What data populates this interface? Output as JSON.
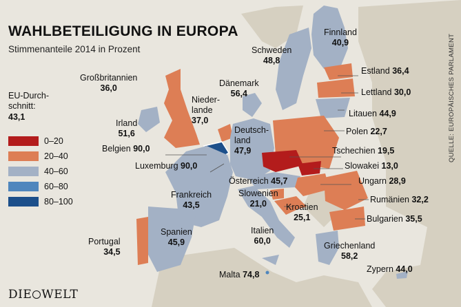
{
  "title": "WAHLBETEILIGUNG IN EUROPA",
  "subtitle": "Stimmenanteile 2014 in Prozent",
  "legend": {
    "average_label": "EU-Durch-schnitt:",
    "average_line1": "EU-Durch-",
    "average_line2": "schnitt:",
    "average_value": "43,1",
    "classes": [
      {
        "range": "0–20",
        "color": "#b31c1c"
      },
      {
        "range": "20–40",
        "color": "#dd7e55"
      },
      {
        "range": "40–60",
        "color": "#a3b1c5"
      },
      {
        "range": "60–80",
        "color": "#4f86bd"
      },
      {
        "range": "80–100",
        "color": "#1c4f8a"
      }
    ]
  },
  "countries": [
    {
      "id": "finnland",
      "name": "Finnland",
      "value": "40,9"
    },
    {
      "id": "schweden",
      "name": "Schweden",
      "value": "48,8"
    },
    {
      "id": "grossbritannien",
      "name": "Großbritannien",
      "value": "36,0"
    },
    {
      "id": "daenemark",
      "name": "Dänemark",
      "value": "56,4"
    },
    {
      "id": "estland",
      "name": "Estland",
      "value": "36,4"
    },
    {
      "id": "lettland",
      "name": "Lettland",
      "value": "30,0"
    },
    {
      "id": "niederlande",
      "name": "Nieder-lande",
      "name1": "Nieder-",
      "name2": "lande",
      "value": "37,0"
    },
    {
      "id": "irland",
      "name": "Irland",
      "value": "51,6"
    },
    {
      "id": "litauen",
      "name": "Litauen",
      "value": "44,9"
    },
    {
      "id": "deutschland",
      "name": "Deutsch-land",
      "name1": "Deutsch-",
      "name2": "land",
      "value": "47,9"
    },
    {
      "id": "polen",
      "name": "Polen",
      "value": "22,7"
    },
    {
      "id": "belgien",
      "name": "Belgien",
      "value": "90,0"
    },
    {
      "id": "tschechien",
      "name": "Tschechien",
      "value": "19,5"
    },
    {
      "id": "luxemburg",
      "name": "Luxemburg",
      "value": "90,0"
    },
    {
      "id": "slowakei",
      "name": "Slowakei",
      "value": "13,0"
    },
    {
      "id": "oesterreich",
      "name": "Österreich",
      "value": "45,7"
    },
    {
      "id": "ungarn",
      "name": "Ungarn",
      "value": "28,9"
    },
    {
      "id": "frankreich",
      "name": "Frankreich",
      "value": "43,5"
    },
    {
      "id": "slowenien",
      "name": "Slowenien",
      "value": "21,0"
    },
    {
      "id": "rumaenien",
      "name": "Rumänien",
      "value": "32,2"
    },
    {
      "id": "kroatien",
      "name": "Kroatien",
      "value": "25,1"
    },
    {
      "id": "bulgarien",
      "name": "Bulgarien",
      "value": "35,5"
    },
    {
      "id": "spanien",
      "name": "Spanien",
      "value": "45,9"
    },
    {
      "id": "italien",
      "name": "Italien",
      "value": "60,0"
    },
    {
      "id": "portugal",
      "name": "Portugal",
      "value": "34,5"
    },
    {
      "id": "griechenland",
      "name": "Griechenland",
      "value": "58,2"
    },
    {
      "id": "malta",
      "name": "Malta",
      "value": "74,8"
    },
    {
      "id": "zypern",
      "name": "Zypern",
      "value": "44,0"
    }
  ],
  "source": "QUELLE: EUROPÄISCHES PARLAMENT",
  "logo": {
    "left": "DIE",
    "right": "WELT"
  }
}
